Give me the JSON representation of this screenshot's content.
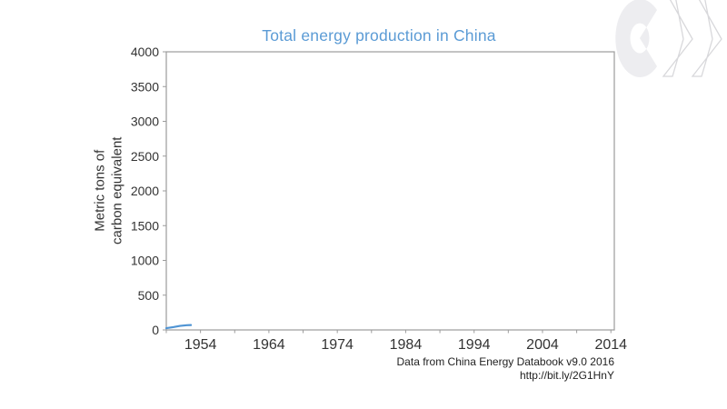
{
  "title": "Total energy production in China",
  "colors": {
    "title": "#5b9bd5",
    "line": "#4f94d4",
    "axis": "#9b9b9b",
    "tick_text": "#333333",
    "logo_fill": "#ededf0",
    "logo_outline": "#d8d8db"
  },
  "y_axis": {
    "label_line1": "Metric tons of",
    "label_line2": "carbon equivalent"
  },
  "attribution": {
    "line1": "Data from China Energy Databook v9.0 2016",
    "line2": "http://bit.ly/2G1HnY"
  },
  "chart_data": {
    "type": "line",
    "title": "Total energy production in China",
    "xlabel": "",
    "ylabel": "Metric tons of carbon equivalent",
    "xlim": [
      1949,
      2014.5
    ],
    "ylim": [
      0,
      4000
    ],
    "x_major_ticks": [
      1954,
      1964,
      1974,
      1984,
      1994,
      2004,
      2014
    ],
    "x_minor_tick_step": 5,
    "y_ticks": [
      0,
      500,
      1000,
      1500,
      2000,
      2500,
      3000,
      3500,
      4000
    ],
    "grid": false,
    "legend": false,
    "note": "Animation frame: the line is drawn only for the first few years (~1949-1952) at the bottom-left of the plot",
    "series": [
      {
        "name": "Total energy production",
        "color": "#4f94d4",
        "points": [
          [
            1949,
            25
          ],
          [
            1950,
            40
          ],
          [
            1951,
            58
          ],
          [
            1952,
            68
          ],
          [
            1952.6,
            70
          ]
        ]
      }
    ]
  }
}
